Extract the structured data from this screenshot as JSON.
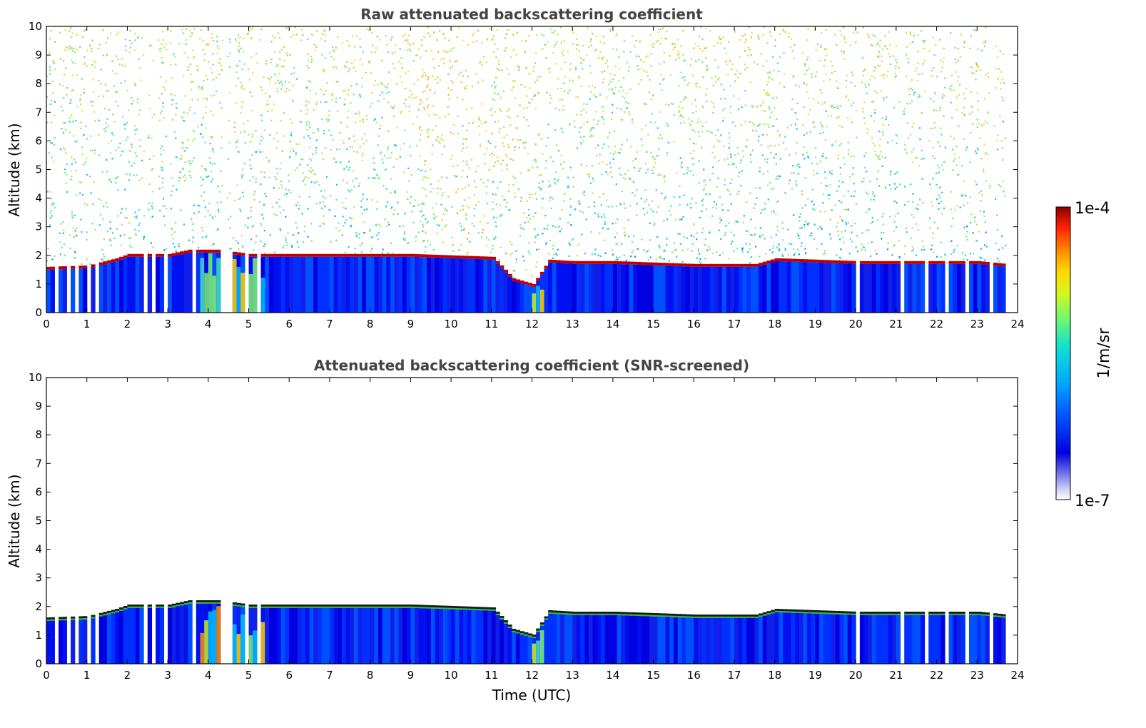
{
  "chart_data": [
    {
      "type": "heatmap",
      "title": "Raw attenuated backscattering coefficient",
      "xlabel": "",
      "ylabel": "Altitude (km)",
      "xlim": [
        0,
        24
      ],
      "ylim": [
        0,
        10
      ],
      "xticks": [
        "0",
        "1",
        "2",
        "3",
        "4",
        "5",
        "6",
        "7",
        "8",
        "9",
        "10",
        "11",
        "12",
        "13",
        "14",
        "15",
        "16",
        "17",
        "18",
        "19",
        "20",
        "21",
        "22",
        "23",
        "24"
      ],
      "yticks": [
        "0",
        "1",
        "2",
        "3",
        "4",
        "5",
        "6",
        "7",
        "8",
        "9",
        "10"
      ],
      "cloud_base_km": [
        [
          0.0,
          1.5
        ],
        [
          1.0,
          1.55
        ],
        [
          1.7,
          1.8
        ],
        [
          2.0,
          1.95
        ],
        [
          3.0,
          1.95
        ],
        [
          3.5,
          2.1
        ],
        [
          4.2,
          2.1
        ],
        [
          5.0,
          1.95
        ],
        [
          6.0,
          1.95
        ],
        [
          7.0,
          1.95
        ],
        [
          7.4,
          1.95
        ],
        [
          9.0,
          1.95
        ],
        [
          10.0,
          1.9
        ],
        [
          11.0,
          1.85
        ],
        [
          11.5,
          1.1
        ],
        [
          12.0,
          0.9
        ],
        [
          12.4,
          1.75
        ],
        [
          13.0,
          1.7
        ],
        [
          14.0,
          1.7
        ],
        [
          15.0,
          1.65
        ],
        [
          16.0,
          1.6
        ],
        [
          17.0,
          1.6
        ],
        [
          17.5,
          1.6
        ],
        [
          18.0,
          1.8
        ],
        [
          19.0,
          1.75
        ],
        [
          20.0,
          1.7
        ],
        [
          21.0,
          1.7
        ],
        [
          22.0,
          1.7
        ],
        [
          23.0,
          1.7
        ],
        [
          23.7,
          1.6
        ]
      ],
      "data_gaps_utc": [
        [
          0.2,
          0.3
        ],
        [
          0.5,
          0.55
        ],
        [
          0.75,
          0.8
        ],
        [
          1.0,
          1.05
        ],
        [
          1.2,
          1.25
        ],
        [
          2.4,
          2.5
        ],
        [
          2.65,
          2.75
        ],
        [
          2.95,
          3.05
        ],
        [
          3.2,
          3.25
        ],
        [
          3.65,
          3.7
        ],
        [
          4.35,
          4.45
        ],
        [
          4.55,
          4.6
        ],
        [
          4.9,
          4.95
        ],
        [
          5.2,
          5.25
        ],
        [
          7.85,
          7.88
        ],
        [
          20.05,
          20.12
        ],
        [
          21.1,
          21.17
        ],
        [
          21.7,
          21.8
        ],
        [
          22.2,
          22.3
        ],
        [
          22.75,
          22.8
        ],
        [
          23.3,
          23.4
        ]
      ]
    },
    {
      "type": "heatmap",
      "title": "Attenuated backscattering coefficient (SNR-screened)",
      "xlabel": "Time (UTC)",
      "ylabel": "Altitude (km)",
      "xlim": [
        0,
        24
      ],
      "ylim": [
        0,
        10
      ],
      "xticks": [
        "0",
        "1",
        "2",
        "3",
        "4",
        "5",
        "6",
        "7",
        "8",
        "9",
        "10",
        "11",
        "12",
        "13",
        "14",
        "15",
        "16",
        "17",
        "18",
        "19",
        "20",
        "21",
        "22",
        "23",
        "24"
      ],
      "yticks": [
        "0",
        "1",
        "2",
        "3",
        "4",
        "5",
        "6",
        "7",
        "8",
        "9",
        "10"
      ]
    }
  ],
  "colorbar": {
    "label": "1/m/sr",
    "max_label": "1e-4",
    "min_label": "1e-7",
    "colormap": [
      "#ffffff",
      "#c8c8f4",
      "#8080ea",
      "#0000e0",
      "#0038ff",
      "#0088ff",
      "#00c8ff",
      "#10e8c8",
      "#60f880",
      "#c8f820",
      "#ffe000",
      "#ff9000",
      "#ff3000",
      "#d00000",
      "#8a0000"
    ]
  },
  "time_range_utc": [
    0,
    23.7
  ]
}
